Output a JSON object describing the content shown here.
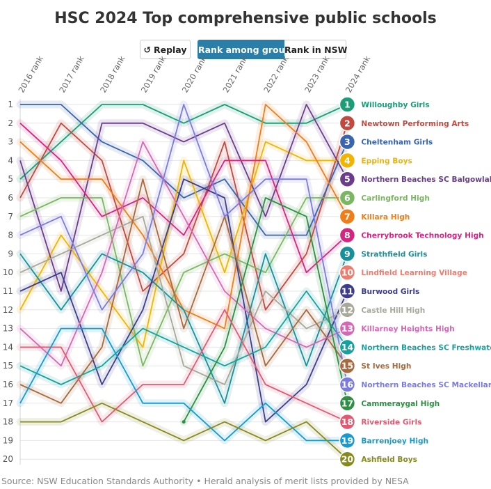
{
  "title": "HSC 2024 Top comprehensive public schools",
  "controls": {
    "replay_label": "Replay",
    "replay_icon": "replay-icon",
    "group_label": "Rank among group",
    "nsw_label": "Rank in NSW",
    "active": "group"
  },
  "source": "Source: NSW Education Standards Authority • Herald analysis of merit lists provided by NESA",
  "chart_data": {
    "type": "line",
    "subtype": "bump",
    "x": [
      "2016 rank",
      "2017 rank",
      "2018 rank",
      "2019 rank",
      "2020 rank",
      "2021 rank",
      "2022 rank",
      "2023 rank",
      "2024 rank"
    ],
    "y_ticks": [
      1,
      2,
      3,
      4,
      5,
      6,
      7,
      8,
      9,
      10,
      11,
      12,
      13,
      14,
      15,
      16,
      17,
      18,
      19,
      20
    ],
    "ylim": [
      1,
      20
    ],
    "y_reversed": true,
    "grid": "horizontal",
    "legend": "right, labels at line ends",
    "series": [
      {
        "name": "Willoughby Girls",
        "color": "#1a9e77",
        "values": [
          5,
          3,
          1,
          1,
          2,
          1,
          2,
          2,
          1
        ]
      },
      {
        "name": "Newtown Performing Arts",
        "color": "#c2493d",
        "values": [
          6,
          2,
          4,
          11,
          9,
          3,
          12,
          9,
          2
        ]
      },
      {
        "name": "Cheltenham Girls",
        "color": "#3a64ad",
        "values": [
          1,
          1,
          3,
          4,
          6,
          5,
          8,
          8,
          3
        ]
      },
      {
        "name": "Epping Boys",
        "color": "#f2b400",
        "values": [
          12,
          8,
          11,
          14,
          4,
          10,
          3,
          4,
          4
        ]
      },
      {
        "name": "Northern Beaches SC Balgowlah Boys",
        "color": "#6a3d8a",
        "values": [
          4,
          11,
          2,
          2,
          3,
          2,
          7,
          1,
          5
        ]
      },
      {
        "name": "Carlingford High",
        "color": "#7bb662",
        "values": [
          7,
          6,
          6,
          15,
          10,
          9,
          10,
          6,
          6
        ]
      },
      {
        "name": "Killara High",
        "color": "#ee7d1a",
        "values": [
          3,
          5,
          5,
          8,
          12,
          13,
          1,
          3,
          7
        ]
      },
      {
        "name": "Cherrybrook Technology High",
        "color": "#d4267e",
        "values": [
          2,
          4,
          7,
          6,
          8,
          4,
          4,
          10,
          8
        ]
      },
      {
        "name": "Strathfield Girls",
        "color": "#16919c",
        "values": [
          9,
          12,
          9,
          10,
          12,
          17,
          9,
          15,
          9
        ]
      },
      {
        "name": "Lindfield Learning Village",
        "color": "#ee7b6d",
        "values": [
          null,
          null,
          null,
          null,
          null,
          null,
          null,
          null,
          10
        ]
      },
      {
        "name": "Burwood Girls",
        "color": "#3b3d8c",
        "values": [
          11,
          10,
          16,
          12,
          5,
          6,
          18,
          16,
          11
        ]
      },
      {
        "name": "Castle Hill High",
        "color": "#a8a89a",
        "values": [
          10,
          9,
          8,
          7,
          15,
          16,
          11,
          13,
          12
        ]
      },
      {
        "name": "Killarney Heights High",
        "color": "#d469b3",
        "values": [
          13,
          15,
          10,
          3,
          7,
          11,
          13,
          14,
          13
        ]
      },
      {
        "name": "Northern Beaches SC Freshwater",
        "color": "#13a39e",
        "values": [
          15,
          16,
          15,
          13,
          14,
          15,
          14,
          11,
          14
        ]
      },
      {
        "name": "St Ives High",
        "color": "#a7693d",
        "values": [
          16,
          17,
          14,
          5,
          13,
          7,
          15,
          12,
          15
        ]
      },
      {
        "name": "Northern Beaches SC Mackellar",
        "color": "#7a7be0",
        "values": [
          8,
          7,
          12,
          9,
          1,
          7,
          5,
          5,
          16
        ]
      },
      {
        "name": "Cammeraygal High",
        "color": "#2d8f42",
        "values": [
          null,
          null,
          null,
          null,
          18,
          14,
          6,
          7,
          17
        ]
      },
      {
        "name": "Riverside Girls",
        "color": "#e05a72",
        "values": [
          14,
          14,
          18,
          16,
          16,
          12,
          16,
          17,
          18
        ]
      },
      {
        "name": "Barrenjoey High",
        "color": "#159bd0",
        "values": [
          17,
          13,
          13,
          17,
          17,
          19,
          17,
          19,
          19
        ]
      },
      {
        "name": "Ashfield Boys",
        "color": "#868a1e",
        "values": [
          18,
          18,
          17,
          18,
          19,
          18,
          19,
          18,
          20
        ]
      }
    ]
  }
}
